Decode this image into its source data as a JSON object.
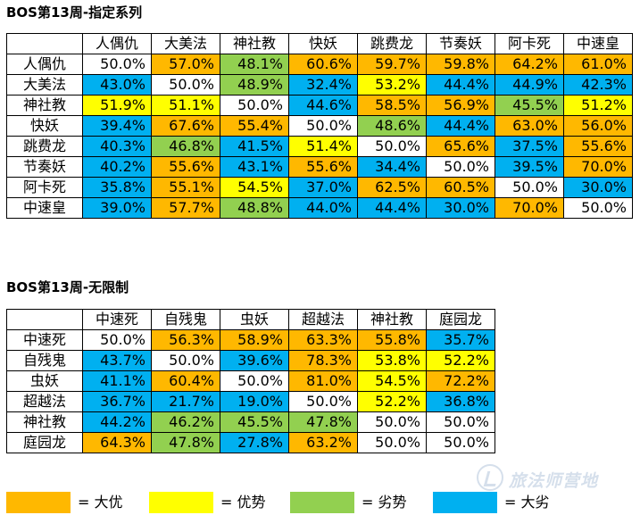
{
  "table1": {
    "title": "BOS第13周-指定系列",
    "columns": [
      "人偶仇",
      "大美法",
      "神社教",
      "快妖",
      "跳费龙",
      "节奏妖",
      "阿卡死",
      "中速皇"
    ],
    "rows": [
      {
        "label": "人偶仇",
        "cells": [
          [
            "50.0%",
            "even"
          ],
          [
            "57.0%",
            "dayou"
          ],
          [
            "48.1%",
            "lie"
          ],
          [
            "60.6%",
            "dayou"
          ],
          [
            "59.7%",
            "dayou"
          ],
          [
            "59.8%",
            "dayou"
          ],
          [
            "64.2%",
            "dayou"
          ],
          [
            "61.0%",
            "dayou"
          ]
        ]
      },
      {
        "label": "大美法",
        "cells": [
          [
            "43.0%",
            "dalie"
          ],
          [
            "50.0%",
            "even"
          ],
          [
            "48.9%",
            "lie"
          ],
          [
            "32.4%",
            "dalie"
          ],
          [
            "53.2%",
            "you"
          ],
          [
            "44.4%",
            "dalie"
          ],
          [
            "44.9%",
            "dalie"
          ],
          [
            "42.3%",
            "dalie"
          ]
        ]
      },
      {
        "label": "神社教",
        "cells": [
          [
            "51.9%",
            "you"
          ],
          [
            "51.1%",
            "you"
          ],
          [
            "50.0%",
            "even"
          ],
          [
            "44.6%",
            "dalie"
          ],
          [
            "58.5%",
            "dayou"
          ],
          [
            "56.9%",
            "dayou"
          ],
          [
            "45.5%",
            "lie"
          ],
          [
            "51.2%",
            "you"
          ]
        ]
      },
      {
        "label": "快妖",
        "cells": [
          [
            "39.4%",
            "dalie"
          ],
          [
            "67.6%",
            "dayou"
          ],
          [
            "55.4%",
            "dayou"
          ],
          [
            "50.0%",
            "even"
          ],
          [
            "48.6%",
            "lie"
          ],
          [
            "44.4%",
            "dalie"
          ],
          [
            "63.0%",
            "dayou"
          ],
          [
            "56.0%",
            "dayou"
          ]
        ]
      },
      {
        "label": "跳费龙",
        "cells": [
          [
            "40.3%",
            "dalie"
          ],
          [
            "46.8%",
            "lie"
          ],
          [
            "41.5%",
            "dalie"
          ],
          [
            "51.4%",
            "you"
          ],
          [
            "50.0%",
            "even"
          ],
          [
            "65.6%",
            "dayou"
          ],
          [
            "37.5%",
            "dalie"
          ],
          [
            "55.6%",
            "dayou"
          ]
        ]
      },
      {
        "label": "节奏妖",
        "cells": [
          [
            "40.2%",
            "dalie"
          ],
          [
            "55.6%",
            "dayou"
          ],
          [
            "43.1%",
            "dalie"
          ],
          [
            "55.6%",
            "dayou"
          ],
          [
            "34.4%",
            "dalie"
          ],
          [
            "50.0%",
            "even"
          ],
          [
            "39.5%",
            "dalie"
          ],
          [
            "70.0%",
            "dayou"
          ]
        ]
      },
      {
        "label": "阿卡死",
        "cells": [
          [
            "35.8%",
            "dalie"
          ],
          [
            "55.1%",
            "dayou"
          ],
          [
            "54.5%",
            "you"
          ],
          [
            "37.0%",
            "dalie"
          ],
          [
            "62.5%",
            "dayou"
          ],
          [
            "60.5%",
            "dayou"
          ],
          [
            "50.0%",
            "even"
          ],
          [
            "30.0%",
            "dalie"
          ]
        ]
      },
      {
        "label": "中速皇",
        "cells": [
          [
            "39.0%",
            "dalie"
          ],
          [
            "57.7%",
            "dayou"
          ],
          [
            "48.8%",
            "lie"
          ],
          [
            "44.0%",
            "dalie"
          ],
          [
            "44.4%",
            "dalie"
          ],
          [
            "30.0%",
            "dalie"
          ],
          [
            "70.0%",
            "dayou"
          ],
          [
            "50.0%",
            "even"
          ]
        ]
      }
    ]
  },
  "table2": {
    "title": "BOS第13周-无限制",
    "columns": [
      "中速死",
      "自残鬼",
      "虫妖",
      "超越法",
      "神社教",
      "庭园龙"
    ],
    "rows": [
      {
        "label": "中速死",
        "cells": [
          [
            "50.0%",
            "even"
          ],
          [
            "56.3%",
            "dayou"
          ],
          [
            "58.9%",
            "dayou"
          ],
          [
            "63.3%",
            "dayou"
          ],
          [
            "55.8%",
            "dayou"
          ],
          [
            "35.7%",
            "dalie"
          ]
        ]
      },
      {
        "label": "自残鬼",
        "cells": [
          [
            "43.7%",
            "dalie"
          ],
          [
            "50.0%",
            "even"
          ],
          [
            "39.6%",
            "dalie"
          ],
          [
            "78.3%",
            "dayou"
          ],
          [
            "53.8%",
            "you"
          ],
          [
            "52.2%",
            "you"
          ]
        ]
      },
      {
        "label": "虫妖",
        "cells": [
          [
            "41.1%",
            "dalie"
          ],
          [
            "60.4%",
            "dayou"
          ],
          [
            "50.0%",
            "even"
          ],
          [
            "81.0%",
            "dayou"
          ],
          [
            "54.5%",
            "you"
          ],
          [
            "72.2%",
            "dayou"
          ]
        ]
      },
      {
        "label": "超越法",
        "cells": [
          [
            "36.7%",
            "dalie"
          ],
          [
            "21.7%",
            "dalie"
          ],
          [
            "19.0%",
            "dalie"
          ],
          [
            "50.0%",
            "even"
          ],
          [
            "52.2%",
            "you"
          ],
          [
            "36.8%",
            "dalie"
          ]
        ]
      },
      {
        "label": "神社教",
        "cells": [
          [
            "44.2%",
            "dalie"
          ],
          [
            "46.2%",
            "lie"
          ],
          [
            "45.5%",
            "lie"
          ],
          [
            "47.8%",
            "lie"
          ],
          [
            "50.0%",
            "even"
          ],
          [
            "50.0%",
            "even"
          ]
        ]
      },
      {
        "label": "庭园龙",
        "cells": [
          [
            "64.3%",
            "dayou"
          ],
          [
            "47.8%",
            "lie"
          ],
          [
            "27.8%",
            "dalie"
          ],
          [
            "63.2%",
            "dayou"
          ],
          [
            "50.0%",
            "even"
          ],
          [
            "50.0%",
            "even"
          ]
        ]
      }
    ]
  },
  "legend": [
    {
      "key": "dayou",
      "label": "= 大优",
      "color": "#FFB800"
    },
    {
      "key": "you",
      "label": "= 优势",
      "color": "#FFFF00"
    },
    {
      "key": "lie",
      "label": "= 劣势",
      "color": "#92D050"
    },
    {
      "key": "dalie",
      "label": "= 大劣",
      "color": "#00B0F0"
    }
  ],
  "colors": {
    "dayou": "#FFB800",
    "you": "#FFFF00",
    "lie": "#92D050",
    "dalie": "#00B0F0",
    "even": "#FFFFFF"
  },
  "watermark": {
    "text": "旅法师营地",
    "icon": "camp-logo-icon"
  }
}
